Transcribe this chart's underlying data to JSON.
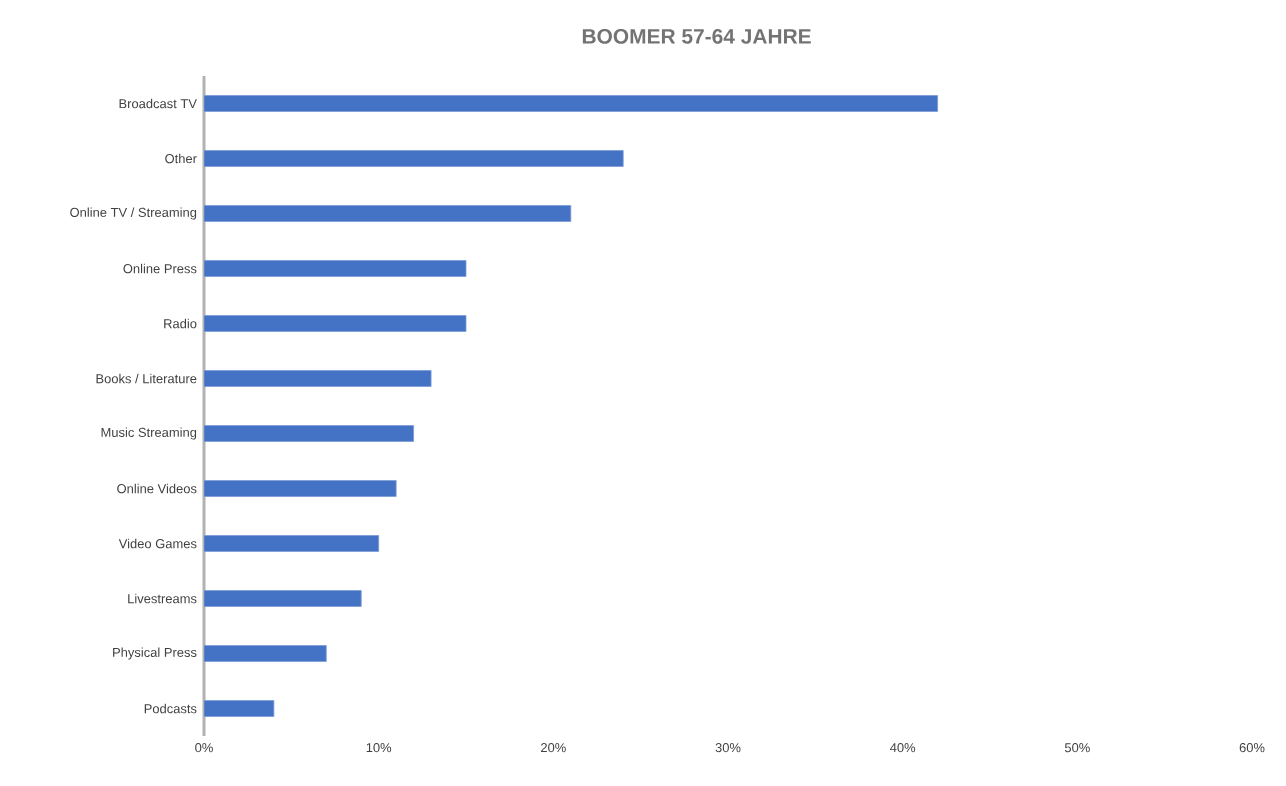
{
  "chart_data": {
    "type": "bar",
    "orientation": "horizontal",
    "title": "BOOMER 57-64 JAHRE",
    "categories": [
      "Broadcast TV",
      "Other",
      "Online TV / Streaming",
      "Online Press",
      "Radio",
      "Books / Literature",
      "Music Streaming",
      "Online Videos",
      "Video Games",
      "Livestreams",
      "Physical Press",
      "Podcasts"
    ],
    "values": [
      42,
      24,
      21,
      15,
      15,
      13,
      12,
      11,
      10,
      9,
      7,
      4
    ],
    "color": "#4472c4",
    "xlim": [
      0,
      60
    ],
    "xticks": [
      {
        "value": 0,
        "label": "0%"
      },
      {
        "value": 10,
        "label": "10%"
      },
      {
        "value": 20,
        "label": "20%"
      },
      {
        "value": 30,
        "label": "30%"
      },
      {
        "value": 40,
        "label": "40%"
      },
      {
        "value": 50,
        "label": "50%"
      },
      {
        "value": 60,
        "label": "60%"
      }
    ],
    "grid": false
  }
}
